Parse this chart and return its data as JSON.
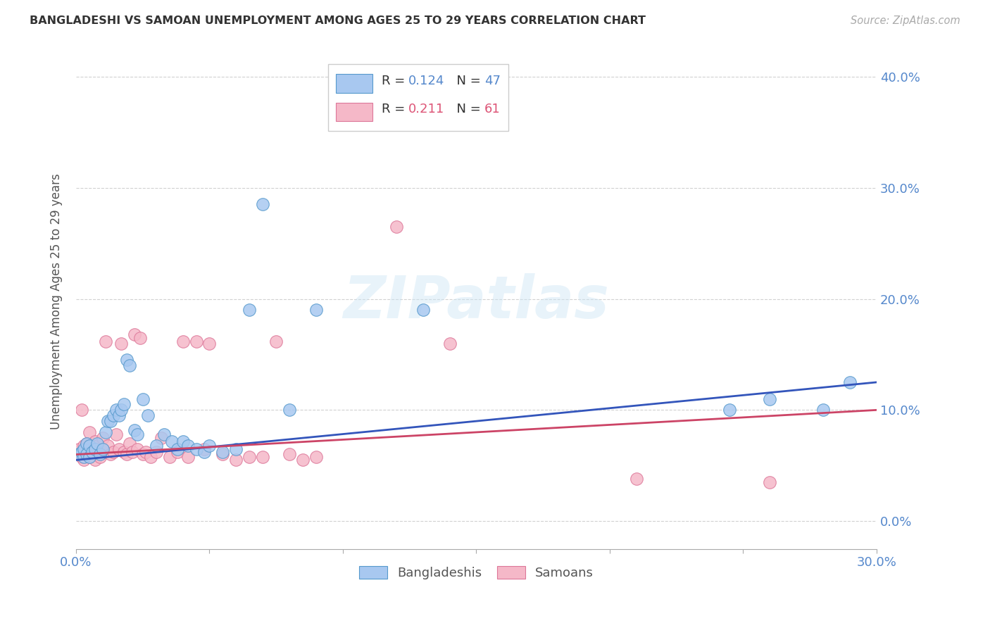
{
  "title": "BANGLADESHI VS SAMOAN UNEMPLOYMENT AMONG AGES 25 TO 29 YEARS CORRELATION CHART",
  "source": "Source: ZipAtlas.com",
  "ylabel": "Unemployment Among Ages 25 to 29 years",
  "xlim": [
    0.0,
    0.3
  ],
  "ylim": [
    -0.025,
    0.42
  ],
  "x_ticks": [
    0.0,
    0.05,
    0.1,
    0.15,
    0.2,
    0.25,
    0.3
  ],
  "y_ticks": [
    0.0,
    0.1,
    0.2,
    0.3,
    0.4
  ],
  "watermark": "ZIPatlas",
  "legend_r1": "0.124",
  "legend_n1": "47",
  "legend_r2": "0.211",
  "legend_n2": "61",
  "bangladeshi_color": "#a8c8f0",
  "bangladeshi_edge": "#5599cc",
  "samoan_color": "#f5b8c8",
  "samoan_edge": "#dd7799",
  "line_blue": "#3355bb",
  "line_pink": "#cc4466",
  "tick_color": "#5588cc",
  "bd_x": [
    0.001,
    0.002,
    0.003,
    0.003,
    0.004,
    0.004,
    0.005,
    0.005,
    0.006,
    0.007,
    0.008,
    0.009,
    0.01,
    0.011,
    0.012,
    0.013,
    0.014,
    0.015,
    0.016,
    0.017,
    0.018,
    0.019,
    0.02,
    0.022,
    0.023,
    0.025,
    0.027,
    0.03,
    0.033,
    0.036,
    0.038,
    0.04,
    0.042,
    0.045,
    0.048,
    0.05,
    0.055,
    0.06,
    0.065,
    0.07,
    0.08,
    0.09,
    0.13,
    0.245,
    0.26,
    0.28,
    0.29
  ],
  "bd_y": [
    0.06,
    0.062,
    0.058,
    0.065,
    0.07,
    0.06,
    0.068,
    0.058,
    0.062,
    0.065,
    0.07,
    0.06,
    0.065,
    0.08,
    0.09,
    0.09,
    0.095,
    0.1,
    0.095,
    0.1,
    0.105,
    0.145,
    0.14,
    0.082,
    0.078,
    0.11,
    0.095,
    0.068,
    0.078,
    0.072,
    0.065,
    0.072,
    0.068,
    0.065,
    0.062,
    0.068,
    0.062,
    0.065,
    0.19,
    0.285,
    0.1,
    0.19,
    0.19,
    0.1,
    0.11,
    0.1,
    0.125
  ],
  "sa_x": [
    0.001,
    0.001,
    0.002,
    0.002,
    0.003,
    0.003,
    0.003,
    0.004,
    0.004,
    0.004,
    0.005,
    0.005,
    0.005,
    0.006,
    0.006,
    0.007,
    0.007,
    0.008,
    0.008,
    0.009,
    0.009,
    0.01,
    0.01,
    0.011,
    0.012,
    0.013,
    0.014,
    0.015,
    0.016,
    0.017,
    0.018,
    0.019,
    0.02,
    0.021,
    0.022,
    0.023,
    0.024,
    0.025,
    0.026,
    0.028,
    0.03,
    0.032,
    0.035,
    0.038,
    0.04,
    0.042,
    0.045,
    0.048,
    0.05,
    0.055,
    0.06,
    0.065,
    0.07,
    0.075,
    0.08,
    0.085,
    0.09,
    0.12,
    0.14,
    0.21,
    0.26
  ],
  "sa_y": [
    0.06,
    0.065,
    0.058,
    0.1,
    0.055,
    0.062,
    0.068,
    0.06,
    0.065,
    0.07,
    0.058,
    0.062,
    0.08,
    0.06,
    0.065,
    0.055,
    0.072,
    0.062,
    0.068,
    0.06,
    0.058,
    0.065,
    0.075,
    0.162,
    0.068,
    0.06,
    0.062,
    0.078,
    0.065,
    0.16,
    0.062,
    0.06,
    0.07,
    0.062,
    0.168,
    0.065,
    0.165,
    0.06,
    0.062,
    0.058,
    0.062,
    0.075,
    0.058,
    0.062,
    0.162,
    0.058,
    0.162,
    0.065,
    0.16,
    0.06,
    0.055,
    0.058,
    0.058,
    0.162,
    0.06,
    0.055,
    0.058,
    0.265,
    0.16,
    0.038,
    0.035
  ]
}
